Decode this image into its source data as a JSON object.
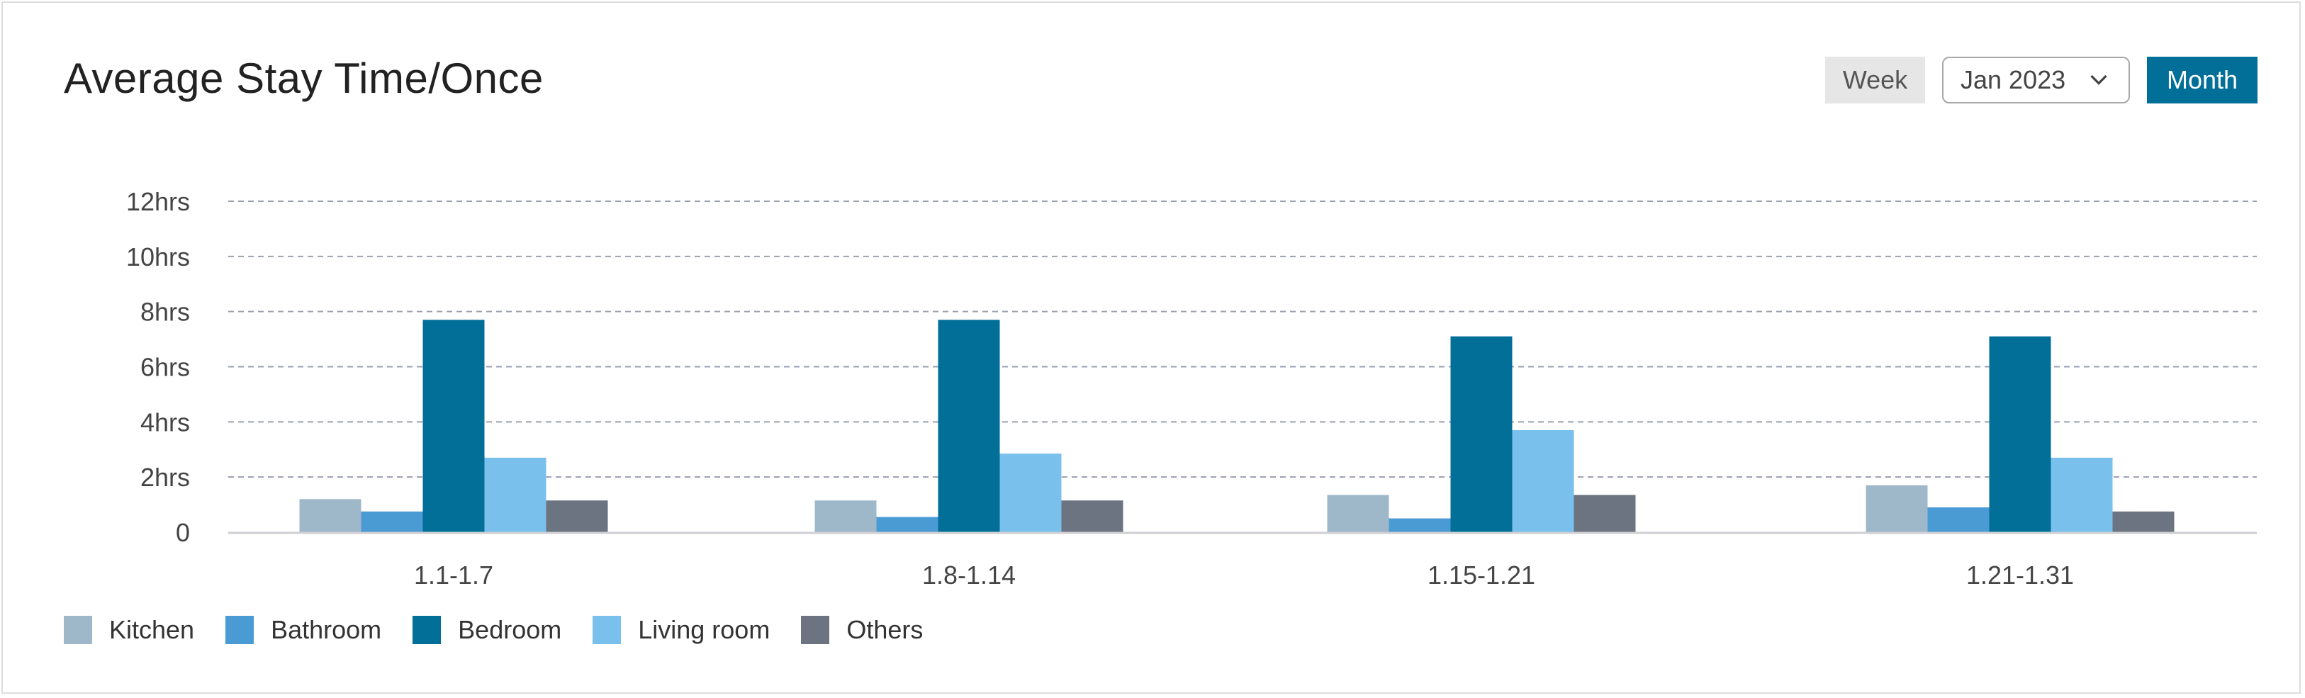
{
  "header": {
    "title": "Average Stay Time/Once",
    "week_label": "Week",
    "date_label": "Jan 2023",
    "month_label": "Month"
  },
  "chart_data": {
    "type": "bar",
    "title": "Average Stay Time/Once",
    "categories": [
      "1.1-1.7",
      "1.8-1.14",
      "1.15-1.21",
      "1.21-1.31"
    ],
    "series": [
      {
        "name": "Kitchen",
        "color": "#9fb8c9",
        "values": [
          1.2,
          1.15,
          1.35,
          1.7
        ]
      },
      {
        "name": "Bathroom",
        "color": "#4a9bd4",
        "values": [
          0.75,
          0.55,
          0.5,
          0.9
        ]
      },
      {
        "name": "Bedroom",
        "color": "#026f98",
        "values": [
          7.7,
          7.7,
          7.1,
          7.1
        ]
      },
      {
        "name": "Living room",
        "color": "#79c0ec",
        "values": [
          2.7,
          2.85,
          3.7,
          2.7
        ]
      },
      {
        "name": "Others",
        "color": "#6b7480",
        "values": [
          1.15,
          1.15,
          1.35,
          0.75
        ]
      }
    ],
    "y_ticks": [
      {
        "value": 0,
        "label": "0"
      },
      {
        "value": 2,
        "label": "2hrs"
      },
      {
        "value": 4,
        "label": "4hrs"
      },
      {
        "value": 6,
        "label": "6hrs"
      },
      {
        "value": 8,
        "label": "8hrs"
      },
      {
        "value": 10,
        "label": "10hrs"
      },
      {
        "value": 12,
        "label": "12hrs"
      }
    ],
    "ylim": [
      0,
      12
    ],
    "grid": true,
    "legend": "bottom-left"
  }
}
